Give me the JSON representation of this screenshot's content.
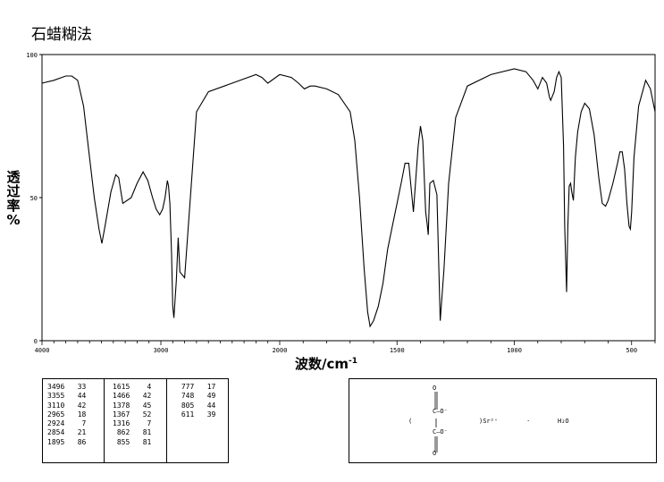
{
  "title": "石蜡糊法",
  "chart_data": {
    "type": "line",
    "ylabel": [
      "透",
      "过",
      "率",
      "%"
    ],
    "xlabel": "波数/cm",
    "xlabel_sup": "-1",
    "xlim": [
      4000,
      400
    ],
    "ylim": [
      0,
      100
    ],
    "x_ticks": [
      4000,
      3000,
      2000,
      1500,
      1000,
      500
    ],
    "y_ticks": [
      0,
      50,
      100
    ],
    "series": [
      {
        "x": [
          4000,
          3900,
          3800,
          3750,
          3700,
          3650,
          3600,
          3560,
          3520,
          3496,
          3470,
          3420,
          3380,
          3355,
          3320,
          3250,
          3200,
          3150,
          3110,
          3070,
          3040,
          3010,
          2985,
          2965,
          2945,
          2935,
          2924,
          2910,
          2900,
          2890,
          2870,
          2854,
          2840,
          2800,
          2700,
          2600,
          2400,
          2200,
          2150,
          2100,
          2000,
          1950,
          1920,
          1895,
          1870,
          1850,
          1800,
          1750,
          1700,
          1680,
          1660,
          1640,
          1625,
          1615,
          1600,
          1580,
          1560,
          1540,
          1520,
          1500,
          1480,
          1466,
          1450,
          1430,
          1410,
          1400,
          1390,
          1378,
          1372,
          1367,
          1360,
          1345,
          1330,
          1316,
          1300,
          1280,
          1250,
          1200,
          1100,
          1000,
          950,
          920,
          900,
          880,
          862,
          855,
          850,
          845,
          830,
          820,
          810,
          800,
          790,
          785,
          777,
          772,
          766,
          760,
          755,
          748,
          740,
          730,
          715,
          700,
          680,
          660,
          640,
          625,
          611,
          600,
          580,
          560,
          550,
          540,
          530,
          520,
          511,
          505,
          500,
          490,
          470,
          440,
          420,
          400
        ],
        "y": [
          90,
          91,
          92.5,
          92.5,
          91,
          82,
          64,
          50,
          39,
          34,
          40,
          52,
          58,
          57,
          48,
          50,
          55,
          59,
          56,
          50,
          46,
          44,
          46,
          50,
          56,
          54,
          48,
          30,
          12,
          8,
          21,
          36,
          24,
          22,
          80,
          87,
          90,
          93,
          92,
          90,
          93,
          92,
          90,
          88,
          89,
          89,
          88,
          86,
          80,
          70,
          50,
          25,
          10,
          5,
          7,
          12,
          20,
          32,
          40,
          48,
          56,
          62,
          62,
          45,
          68,
          75,
          70,
          45,
          41,
          37,
          55,
          56,
          51,
          7,
          25,
          55,
          78,
          89,
          93,
          95,
          94,
          91,
          88,
          92,
          90,
          87,
          85,
          84,
          87,
          92,
          94,
          92,
          68,
          40,
          17,
          40,
          54,
          55,
          52,
          49,
          64,
          73,
          80,
          83,
          81,
          72,
          57,
          48,
          47,
          49,
          55,
          62,
          66,
          66,
          60,
          48,
          40,
          39,
          45,
          64,
          82,
          91,
          88,
          80
        ]
      }
    ]
  },
  "peak_table": {
    "col1": [
      [
        "3496",
        "33"
      ],
      [
        "3355",
        "44"
      ],
      [
        "3110",
        "42"
      ],
      [
        "2965",
        "18"
      ],
      [
        "2924",
        "7"
      ],
      [
        "2854",
        "21"
      ],
      [
        "1895",
        "86"
      ]
    ],
    "col2": [
      [
        "1615",
        "4"
      ],
      [
        "1466",
        "42"
      ],
      [
        "1378",
        "45"
      ],
      [
        "1367",
        "52"
      ],
      [
        "1316",
        "7"
      ],
      [
        "862",
        "81"
      ],
      [
        "855",
        "81"
      ]
    ],
    "col3": [
      [
        "777",
        "17"
      ],
      [
        "748",
        "49"
      ],
      [
        "805",
        "44"
      ],
      [
        "611",
        "39"
      ]
    ]
  },
  "structure": {
    "o_top": "O",
    "o_bottom": "O",
    "o_minus_top": "C—O⁻",
    "o_minus_bottom": "C—O⁻",
    "paren_open": "(",
    "paren_close": ")Sr²⁺",
    "dot": "·",
    "water": "H₂O"
  }
}
